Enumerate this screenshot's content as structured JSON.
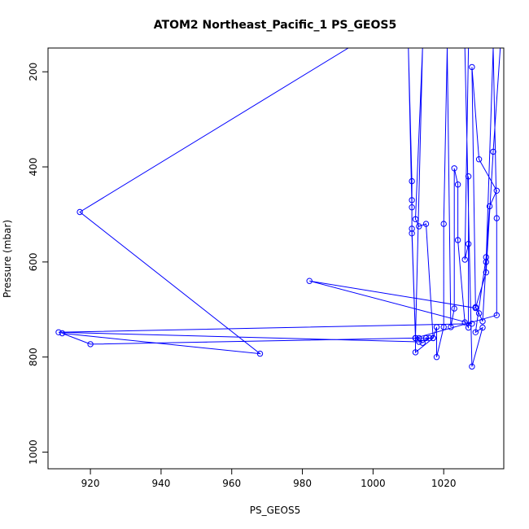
{
  "chart_data": {
    "type": "line",
    "title": "ATOM2 Northeast_Pacific_1 PS_GEOS5",
    "xlabel": "PS_GEOS5",
    "ylabel": "Pressure (mbar)",
    "xlim": [
      908,
      1037
    ],
    "ylim": [
      1035,
      150
    ],
    "y_reversed": true,
    "xticks": [
      920,
      940,
      960,
      980,
      1000,
      1020
    ],
    "yticks": [
      200,
      400,
      600,
      800,
      1000
    ],
    "grid": false,
    "series_color": "#0000ff",
    "marker": "open-circle",
    "series": [
      {
        "points": [
          [
            993,
            150
          ],
          [
            917,
            495
          ],
          [
            968,
            793
          ],
          [
            912,
            750
          ],
          [
            920,
            773
          ],
          [
            1012,
            760
          ],
          [
            1013,
            760
          ],
          [
            1015,
            760
          ],
          [
            1017,
            760
          ],
          [
            1012,
            790
          ],
          [
            1012,
            760
          ],
          [
            1014,
            770
          ],
          [
            1016,
            760
          ],
          [
            1013,
            768
          ],
          [
            911,
            748
          ],
          [
            1028,
            730
          ],
          [
            982,
            640
          ],
          [
            1029,
            697
          ],
          [
            1032,
            622
          ],
          [
            1034,
            368
          ],
          [
            1036,
            150
          ],
          [
            1026,
            150
          ],
          [
            1028,
            820
          ],
          [
            1031,
            738
          ],
          [
            1029,
            748
          ],
          [
            1032,
            590
          ],
          [
            1033,
            483
          ],
          [
            1035,
            450
          ],
          [
            1030,
            384
          ],
          [
            1028,
            190
          ],
          [
            1029,
            695
          ],
          [
            1030,
            708
          ],
          [
            1031,
            725
          ],
          [
            1032,
            600
          ],
          [
            1034,
            150
          ],
          [
            1027,
            150
          ],
          [
            1026,
            595
          ],
          [
            1027,
            562
          ],
          [
            1027,
            420
          ],
          [
            1027,
            738
          ],
          [
            1026,
            727
          ],
          [
            1024,
            554
          ],
          [
            1024,
            437
          ],
          [
            1023,
            403
          ],
          [
            1023,
            698
          ],
          [
            1022,
            737
          ],
          [
            1021,
            150
          ],
          [
            1020,
            520
          ],
          [
            1020,
            737
          ],
          [
            1018,
            800
          ],
          [
            1018,
            737
          ],
          [
            1017,
            760
          ],
          [
            1015,
            520
          ],
          [
            1013,
            525
          ],
          [
            1012,
            510
          ],
          [
            1014,
            150
          ],
          [
            1012,
            760
          ],
          [
            1011,
            540
          ],
          [
            1011,
            470
          ],
          [
            1011,
            430
          ],
          [
            1010,
            150
          ],
          [
            1011,
            485
          ],
          [
            1011,
            530
          ],
          [
            1012,
            760
          ],
          [
            1035,
            712
          ],
          [
            1035,
            508
          ],
          [
            1034,
            150
          ]
        ]
      }
    ]
  }
}
